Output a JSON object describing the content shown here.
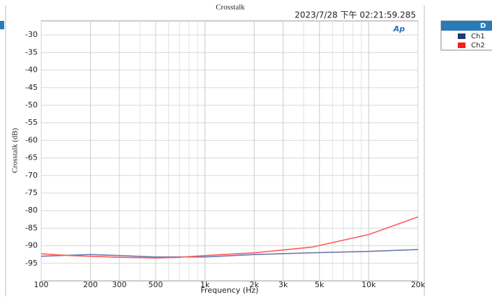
{
  "chart_data": {
    "type": "line",
    "title": "Crosstalk",
    "timestamp": "2023/7/28 下午 02:21:59.285",
    "x_label": "Frequency (Hz)",
    "y_label": "Crosstalk (dB)",
    "logo": "Ap",
    "legend_title": "D",
    "x": [
      100,
      150,
      200,
      300,
      500,
      700,
      1000,
      2000,
      4500,
      10000,
      20000
    ],
    "series": [
      {
        "name": "Ch1",
        "color": "#6a79a8",
        "legend_color": "#1f3a78",
        "values": [
          -93,
          -92.7,
          -92.5,
          -92.8,
          -93.2,
          -93.2,
          -93.2,
          -92.5,
          -92,
          -91.6,
          -91.1
        ]
      },
      {
        "name": "Ch2",
        "color": "#ff5a5a",
        "legend_color": "#ff1a1a",
        "values": [
          -92.3,
          -92.8,
          -93,
          -93.3,
          -93.5,
          -93.3,
          -92.8,
          -92,
          -90.4,
          -86.8,
          -81.8
        ]
      }
    ],
    "xlog": true,
    "xlim": [
      100,
      20000
    ],
    "ylim": [
      -100,
      -26
    ],
    "xticks": [
      100,
      200,
      300,
      500,
      {
        "value": 1000,
        "label": "1k"
      },
      {
        "value": 2000,
        "label": "2k"
      },
      {
        "value": 3000,
        "label": "3k"
      },
      {
        "value": 5000,
        "label": "5k"
      },
      {
        "value": 10000,
        "label": "10k"
      },
      {
        "value": 20000,
        "label": "20k"
      }
    ],
    "yticks": [
      -30,
      -35,
      -40,
      -45,
      -50,
      -55,
      -60,
      -65,
      -70,
      -75,
      -80,
      -85,
      -90,
      -95
    ],
    "grid": true,
    "minor_grid": true
  }
}
